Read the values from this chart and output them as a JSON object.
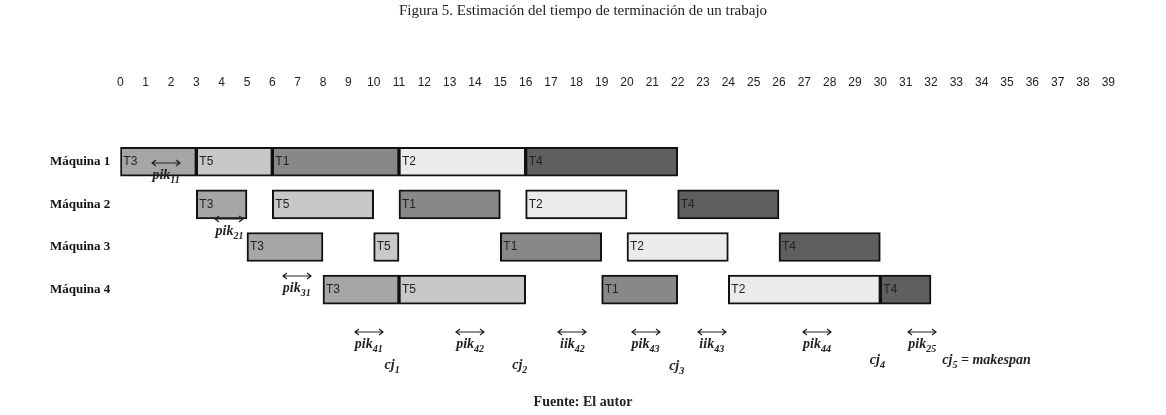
{
  "chart_data": {
    "type": "bar",
    "orientation": "horizontal",
    "title": "Figura 5. Estimación del tiempo de terminación de un trabajo",
    "categories": [
      "Máquina 1",
      "Máquina 2",
      "Máquina 3",
      "Máquina 4"
    ],
    "series": [
      {
        "name": "T3",
        "color": "#a6a6a6",
        "values": [
          3,
          2,
          3,
          3
        ],
        "base": [
          0,
          3,
          5,
          8
        ]
      },
      {
        "name": "T5",
        "color": "#c8c8c8",
        "values": [
          3,
          4,
          1,
          5
        ],
        "base": [
          3,
          6,
          10,
          11
        ]
      },
      {
        "name": "T1",
        "color": "#888888",
        "values": [
          5,
          4,
          4,
          3
        ],
        "base": [
          6,
          11,
          15,
          19
        ]
      },
      {
        "name": "T2",
        "color": "#ebebeb",
        "values": [
          5,
          4,
          4,
          6
        ],
        "base": [
          11,
          16,
          20,
          24
        ]
      },
      {
        "name": "T4",
        "color": "#5f5f5f",
        "values": [
          6,
          4,
          4,
          2
        ],
        "base": [
          16,
          22,
          26,
          30
        ]
      }
    ],
    "xlim": [
      0,
      39
    ],
    "xticks": [
      0,
      1,
      2,
      3,
      4,
      5,
      6,
      7,
      8,
      9,
      10,
      11,
      12,
      13,
      14,
      15,
      16,
      17,
      18,
      19,
      20,
      21,
      22,
      23,
      24,
      25,
      26,
      27,
      28,
      29,
      30,
      31,
      32,
      33,
      34,
      35,
      36,
      37,
      38,
      39
    ],
    "grid": false,
    "legend": false,
    "annotations": [
      "pik$_{11}$",
      "pik$_{21}$",
      "pik$_{31}$",
      "pik$_{41}$",
      "pik$_{42}$",
      "iik$_{42}$",
      "pik$_{43}$",
      "iik$_{43}$",
      "pik$_{44}$",
      "pik$_{25}$",
      "cj$_{1}$",
      "cj$_{2}$",
      "cj$_{3}$",
      "cj$_{4}$",
      "cj$_{5}$ = makespan",
      "Fuente: El autor"
    ]
  }
}
